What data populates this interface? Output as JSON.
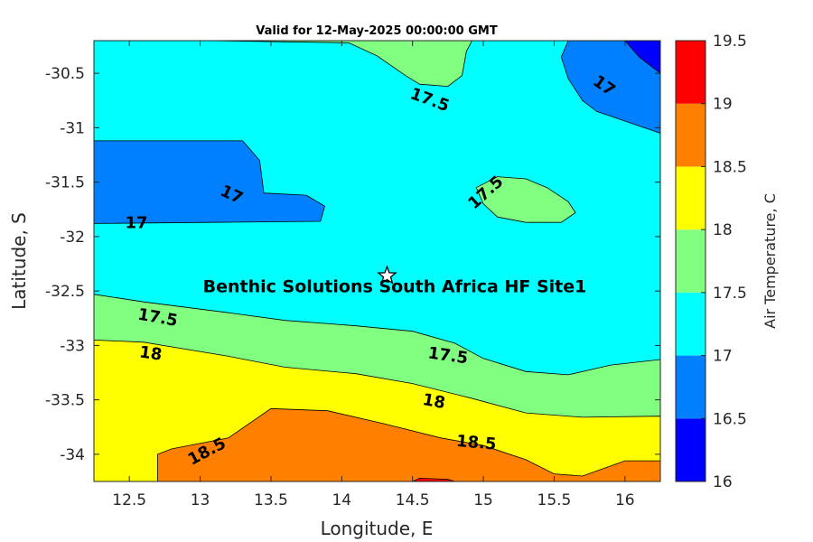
{
  "chart_data": {
    "type": "contourf",
    "title": "Valid for 12-May-2025 00:00:00 GMT",
    "xlabel": "Longitude, E",
    "ylabel": "Latitude, S",
    "xlim": [
      12.25,
      16.25
    ],
    "ylim": [
      -34.25,
      -30.2
    ],
    "xticks": [
      12.5,
      13,
      13.5,
      14,
      14.5,
      15,
      15.5,
      16
    ],
    "xtick_labels": [
      "12.5",
      "13",
      "13.5",
      "14",
      "14.5",
      "15",
      "15.5",
      "16"
    ],
    "yticks": [
      -30.5,
      -31,
      -31.5,
      -32,
      -32.5,
      -33,
      -33.5,
      -34
    ],
    "ytick_labels": [
      "-30.5",
      "-31",
      "-31.5",
      "-32",
      "-32.5",
      "-33",
      "-33.5",
      "-34"
    ],
    "colorbar": {
      "label": "Air Temperature, C",
      "levels": [
        16,
        16.5,
        17,
        17.5,
        18,
        18.5,
        19,
        19.5
      ],
      "tick_labels": [
        "16",
        "16.5",
        "17",
        "17.5",
        "18",
        "18.5",
        "19",
        "19.5"
      ],
      "colors": [
        "#0000ff",
        "#0080ff",
        "#00ffff",
        "#80ff80",
        "#ffff00",
        "#ff8000",
        "#ff0000",
        "#800000"
      ]
    },
    "regions": [
      {
        "level": 17,
        "points": [
          [
            12.25,
            -30.2
          ],
          [
            16.25,
            -30.2
          ],
          [
            16.25,
            -34.25
          ],
          [
            12.25,
            -34.25
          ]
        ]
      },
      {
        "level": 17.5,
        "points": [
          [
            12.25,
            -32.53
          ],
          [
            12.6,
            -32.6
          ],
          [
            13.2,
            -32.7
          ],
          [
            13.6,
            -32.77
          ],
          [
            14.1,
            -32.82
          ],
          [
            14.5,
            -32.87
          ],
          [
            14.8,
            -32.98
          ],
          [
            15.0,
            -33.12
          ],
          [
            15.3,
            -33.24
          ],
          [
            15.6,
            -33.27
          ],
          [
            15.9,
            -33.18
          ],
          [
            16.25,
            -33.13
          ],
          [
            16.25,
            -34.25
          ],
          [
            12.25,
            -34.25
          ]
        ]
      },
      {
        "level": 18,
        "points": [
          [
            12.25,
            -32.95
          ],
          [
            12.6,
            -32.97
          ],
          [
            13.2,
            -33.1
          ],
          [
            13.6,
            -33.2
          ],
          [
            14.1,
            -33.26
          ],
          [
            14.5,
            -33.35
          ],
          [
            14.9,
            -33.48
          ],
          [
            15.3,
            -33.62
          ],
          [
            15.7,
            -33.66
          ],
          [
            16.25,
            -33.65
          ],
          [
            16.25,
            -34.25
          ],
          [
            12.25,
            -34.25
          ]
        ]
      },
      {
        "level": 18.5,
        "points": [
          [
            12.7,
            -34.25
          ],
          [
            12.7,
            -34.0
          ],
          [
            12.8,
            -33.95
          ],
          [
            13.2,
            -33.85
          ],
          [
            13.5,
            -33.58
          ],
          [
            13.9,
            -33.6
          ],
          [
            14.3,
            -33.72
          ],
          [
            14.7,
            -33.85
          ],
          [
            15.0,
            -33.92
          ],
          [
            15.3,
            -34.05
          ],
          [
            15.5,
            -34.18
          ],
          [
            15.7,
            -34.2
          ],
          [
            16.0,
            -34.06
          ],
          [
            16.25,
            -34.06
          ],
          [
            16.25,
            -34.25
          ]
        ]
      },
      {
        "level": 19,
        "points": [
          [
            14.5,
            -34.25
          ],
          [
            14.55,
            -34.22
          ],
          [
            14.75,
            -34.23
          ],
          [
            14.8,
            -34.25
          ]
        ]
      },
      {
        "level": 17.5,
        "points": [
          [
            13.05,
            -30.2
          ],
          [
            14.05,
            -30.22
          ],
          [
            14.25,
            -30.34
          ],
          [
            14.45,
            -30.52
          ],
          [
            14.55,
            -30.6
          ],
          [
            14.75,
            -30.62
          ],
          [
            14.85,
            -30.52
          ],
          [
            14.88,
            -30.3
          ],
          [
            14.92,
            -30.2
          ]
        ]
      },
      {
        "level": 17.5,
        "points": [
          [
            14.95,
            -31.55
          ],
          [
            15.1,
            -31.45
          ],
          [
            15.3,
            -31.47
          ],
          [
            15.45,
            -31.55
          ],
          [
            15.6,
            -31.68
          ],
          [
            15.65,
            -31.78
          ],
          [
            15.55,
            -31.87
          ],
          [
            15.3,
            -31.87
          ],
          [
            15.1,
            -31.82
          ],
          [
            15.0,
            -31.7
          ]
        ]
      },
      {
        "level": 16.5,
        "points": [
          [
            12.25,
            -31.12
          ],
          [
            13.3,
            -31.12
          ],
          [
            13.42,
            -31.3
          ],
          [
            13.45,
            -31.6
          ],
          [
            13.75,
            -31.62
          ],
          [
            13.88,
            -31.72
          ],
          [
            13.85,
            -31.86
          ],
          [
            12.25,
            -31.88
          ]
        ]
      },
      {
        "level": 16.5,
        "points": [
          [
            15.95,
            -30.2
          ],
          [
            16.25,
            -30.2
          ],
          [
            16.25,
            -31.05
          ],
          [
            15.8,
            -30.85
          ],
          [
            15.7,
            -30.75
          ],
          [
            15.6,
            -30.55
          ],
          [
            15.55,
            -30.35
          ],
          [
            15.6,
            -30.2
          ]
        ]
      },
      {
        "level": 16,
        "points": [
          [
            16.0,
            -30.2
          ],
          [
            16.25,
            -30.2
          ],
          [
            16.25,
            -30.5
          ],
          [
            16.1,
            -30.35
          ]
        ]
      }
    ],
    "contour_labels": [
      {
        "text": "17.5",
        "x": 14.62,
        "y": -30.75,
        "angle": 20
      },
      {
        "text": "17",
        "x": 15.85,
        "y": -30.62,
        "angle": 35
      },
      {
        "text": "17",
        "x": 13.22,
        "y": -31.62,
        "angle": 25
      },
      {
        "text": "17",
        "x": 12.55,
        "y": -31.88,
        "angle": 0
      },
      {
        "text": "17.5",
        "x": 15.02,
        "y": -31.6,
        "angle": -42
      },
      {
        "text": "17.5",
        "x": 12.7,
        "y": -32.75,
        "angle": 10
      },
      {
        "text": "18",
        "x": 12.65,
        "y": -33.08,
        "angle": 8
      },
      {
        "text": "17.5",
        "x": 14.75,
        "y": -33.1,
        "angle": 8
      },
      {
        "text": "18",
        "x": 14.65,
        "y": -33.52,
        "angle": 10
      },
      {
        "text": "18.5",
        "x": 13.05,
        "y": -33.98,
        "angle": -28
      },
      {
        "text": "18.5",
        "x": 14.95,
        "y": -33.9,
        "angle": 5
      }
    ],
    "site": {
      "name": "Benthic Solutions South Africa HF Site1",
      "lon": 14.32,
      "lat": -32.36
    }
  }
}
